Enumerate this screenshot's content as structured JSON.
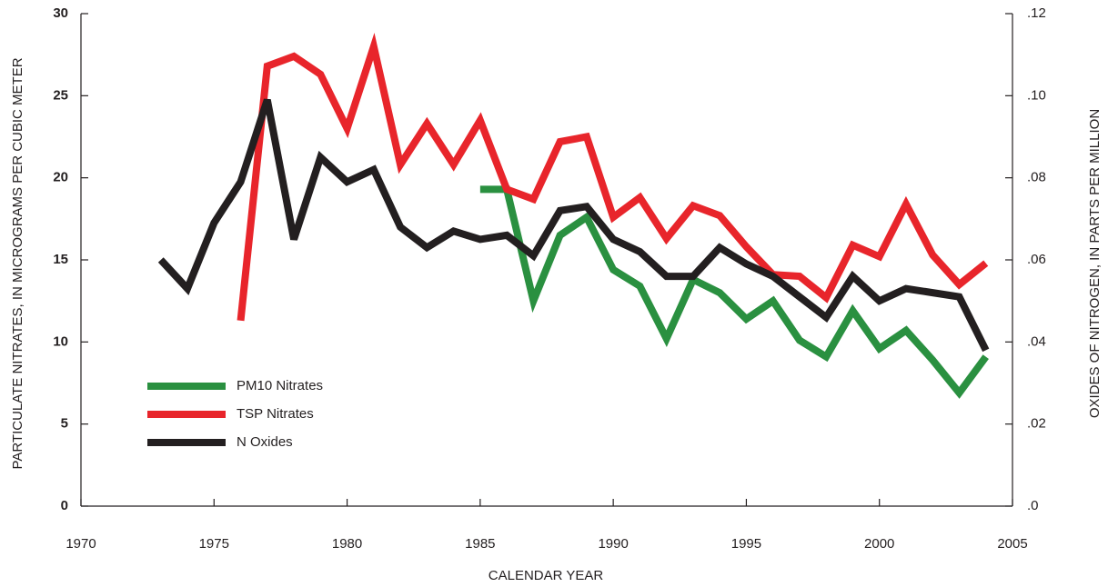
{
  "chart_data": {
    "type": "line",
    "xlabel": "CALENDAR YEAR",
    "ylabel": "PARTICULATE NITRATES, IN MICROGRAMS PER CUBIC METER",
    "y2label": "OXIDES OF NITROGEN, IN PARTS PER MILLION",
    "xlim": [
      1970,
      2005
    ],
    "xticks": [
      1970,
      1975,
      1980,
      1985,
      1990,
      1995,
      2000,
      2005
    ],
    "ylim": [
      0,
      30
    ],
    "yticks": [
      0,
      5,
      10,
      15,
      20,
      25,
      30
    ],
    "y2lim": [
      0,
      0.12
    ],
    "y2ticks": [
      {
        "value": 0,
        "label": ".0"
      },
      {
        "value": 0.02,
        "label": ".02"
      },
      {
        "value": 0.04,
        "label": ".04"
      },
      {
        "value": 0.06,
        "label": ".06"
      },
      {
        "value": 0.08,
        "label": ".08"
      },
      {
        "value": 0.1,
        "label": ".10"
      },
      {
        "value": 0.12,
        "label": ".12"
      }
    ],
    "legend": "lower left",
    "series": [
      {
        "name": "PM10 Nitrates",
        "color": "#2a9040",
        "x": [
          1985,
          1986,
          1987,
          1988,
          1989,
          1990,
          1991,
          1992,
          1993,
          1994,
          1995,
          1996,
          1997,
          1998,
          1999,
          2000,
          2001,
          2002,
          2003,
          2004
        ],
        "values": [
          19.3,
          19.3,
          12.5,
          16.5,
          17.6,
          14.4,
          13.4,
          10.2,
          13.8,
          13.0,
          11.4,
          12.5,
          10.1,
          9.1,
          11.9,
          9.6,
          10.7,
          8.9,
          6.9,
          9.1
        ]
      },
      {
        "name": "TSP Nitrates",
        "color": "#e8252b",
        "x": [
          1976,
          1977,
          1978,
          1979,
          1980,
          1981,
          1982,
          1983,
          1984,
          1985,
          1986,
          1987,
          1988,
          1989,
          1990,
          1991,
          1992,
          1993,
          1994,
          1995,
          1996,
          1997,
          1998,
          1999,
          2000,
          2001,
          2002,
          2003,
          2004
        ],
        "values": [
          11.3,
          26.8,
          27.4,
          26.3,
          23.0,
          28.0,
          20.8,
          23.3,
          20.8,
          23.5,
          19.3,
          18.7,
          22.2,
          22.5,
          17.6,
          18.8,
          16.3,
          18.3,
          17.7,
          15.8,
          14.1,
          14.0,
          12.7,
          15.9,
          15.2,
          18.4,
          15.3,
          13.5,
          14.8
        ]
      },
      {
        "name": "N Oxides",
        "color": "#231f20",
        "axis": "y2",
        "x": [
          1973,
          1974,
          1975,
          1976,
          1977,
          1978,
          1979,
          1980,
          1981,
          1982,
          1983,
          1984,
          1985,
          1986,
          1987,
          1988,
          1989,
          1990,
          1991,
          1992,
          1993,
          1994,
          1995,
          1996,
          1997,
          1998,
          1999,
          2000,
          2001,
          2002,
          2003,
          2004
        ],
        "values": [
          0.06,
          0.053,
          0.069,
          0.079,
          0.099,
          0.065,
          0.085,
          0.079,
          0.082,
          0.068,
          0.063,
          0.067,
          0.065,
          0.066,
          0.061,
          0.072,
          0.073,
          0.065,
          0.062,
          0.056,
          0.056,
          0.063,
          0.059,
          0.056,
          0.051,
          0.046,
          0.056,
          0.05,
          0.053,
          0.052,
          0.051,
          0.038
        ]
      }
    ]
  }
}
